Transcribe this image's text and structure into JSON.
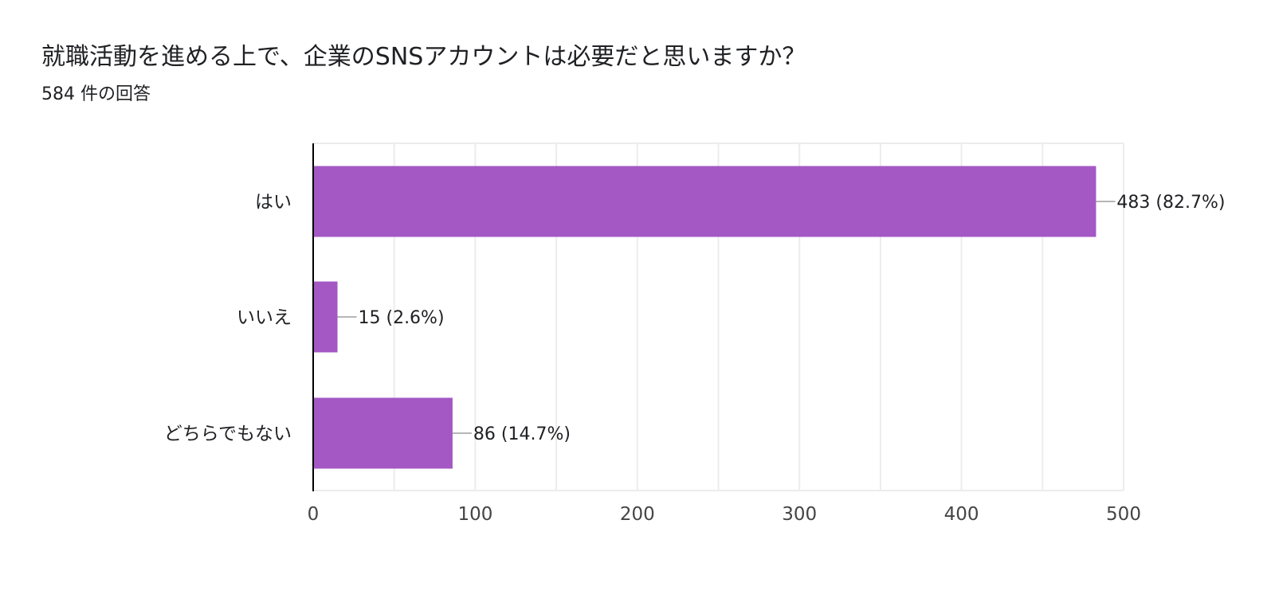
{
  "header": {
    "question": "就職活動を進める上で、企業のSNSアカウントは必要だと思いますか？",
    "response_count": "584 件の回答"
  },
  "colors": {
    "bar": "#a358c4",
    "grid": "#ececec",
    "axis": "#000000",
    "text": "#202124",
    "tick_text": "#444444",
    "leader": "#9e9e9e"
  },
  "chart_data": {
    "type": "bar",
    "orientation": "horizontal",
    "categories": [
      "はい",
      "いいえ",
      "どちらでもない"
    ],
    "values": [
      483,
      15,
      86
    ],
    "data_labels": [
      "483 (82.7%)",
      "15 (2.6%)",
      "86 (14.7%)"
    ],
    "xlim": [
      0,
      500
    ],
    "xticks": [
      0,
      100,
      200,
      300,
      400,
      500
    ],
    "xtick_labels": [
      "0",
      "100",
      "200",
      "300",
      "400",
      "500"
    ],
    "minor_gridlines": true,
    "legend": "none"
  }
}
